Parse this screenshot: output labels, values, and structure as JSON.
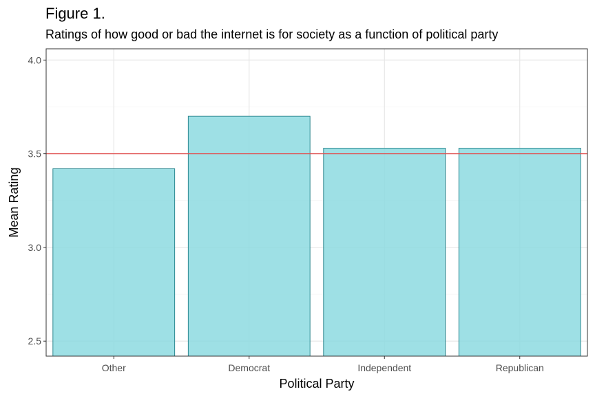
{
  "chart_data": {
    "type": "bar",
    "title": "Figure 1.",
    "subtitle": "Ratings of how good or bad the internet is for society as a function of political party",
    "xlabel": "Political Party",
    "ylabel": "Mean Rating",
    "categories": [
      "Other",
      "Democrat",
      "Independent",
      "Republican"
    ],
    "values": [
      3.42,
      3.7,
      3.53,
      3.53
    ],
    "ylim": [
      2.42,
      4.06
    ],
    "yticks": [
      2.5,
      3.0,
      3.5,
      4.0
    ],
    "ytick_labels": [
      "2.5",
      "3.0",
      "3.5",
      "4.0"
    ],
    "reference_line": {
      "y": 3.5,
      "color": "#e05252"
    },
    "bar_fill": "#8ddbe0",
    "bar_stroke": "#1b7c85",
    "grid": true,
    "legend": "none"
  }
}
